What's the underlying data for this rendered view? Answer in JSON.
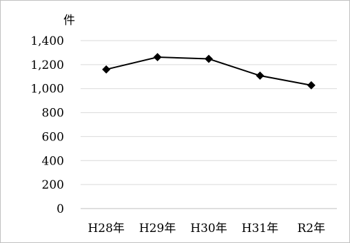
{
  "chart_data": {
    "type": "line",
    "unit_label": "件",
    "categories": [
      "H28年",
      "H29年",
      "H30年",
      "H31年",
      "R2年"
    ],
    "series": [
      {
        "values": [
          1160,
          1262,
          1248,
          1108,
          1028
        ]
      }
    ],
    "ylim": [
      0,
      1400
    ],
    "yticks": [
      0,
      200,
      400,
      600,
      800,
      1000,
      1200,
      1400
    ],
    "ytick_labels": [
      "0",
      "200",
      "400",
      "600",
      "800",
      "1,000",
      "1,200",
      "1,400"
    ],
    "grid": true,
    "legend": "none",
    "colors": {
      "line": "#000000",
      "grid": "#d9d9d9",
      "axis": "#bfbfbf"
    }
  }
}
